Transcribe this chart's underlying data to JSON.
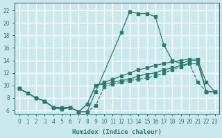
{
  "background_color": "#cce8ef",
  "grid_color": "#ffffff",
  "line_color": "#2d7a6e",
  "xlabel": "Humidex (Indice chaleur)",
  "xlim": [
    -0.5,
    23.5
  ],
  "ylim": [
    5.5,
    23.2
  ],
  "xticks": [
    0,
    1,
    2,
    3,
    4,
    5,
    6,
    7,
    8,
    9,
    10,
    11,
    12,
    13,
    14,
    15,
    16,
    17,
    18,
    19,
    20,
    21,
    22,
    23
  ],
  "yticks": [
    6,
    8,
    10,
    12,
    14,
    16,
    18,
    20,
    22
  ],
  "curve1_x": [
    0,
    1,
    2,
    3,
    4,
    5,
    6,
    7,
    8,
    9,
    12,
    13,
    14,
    15,
    16,
    17,
    18,
    19,
    20,
    21,
    22,
    23
  ],
  "curve1_y": [
    9.5,
    8.8,
    8.0,
    7.5,
    6.5,
    6.5,
    6.5,
    5.8,
    5.8,
    9.0,
    18.5,
    21.8,
    21.5,
    21.5,
    21.0,
    16.5,
    14.0,
    13.5,
    14.0,
    14.0,
    10.5,
    9.0
  ],
  "curve2_x": [
    0,
    2,
    3,
    4,
    5,
    6,
    7,
    8,
    9,
    10,
    11,
    12,
    13,
    14,
    15,
    16,
    17,
    18,
    19,
    20,
    21,
    22,
    23
  ],
  "curve2_y": [
    9.5,
    8.0,
    7.5,
    6.5,
    6.2,
    6.5,
    5.8,
    7.0,
    10.0,
    10.5,
    11.0,
    11.5,
    12.0,
    12.5,
    12.8,
    13.2,
    13.5,
    13.8,
    14.0,
    14.2,
    14.2,
    9.0,
    9.0
  ],
  "curve3_x": [
    0,
    2,
    3,
    4,
    5,
    6,
    7,
    8,
    9,
    10,
    11,
    12,
    13,
    14,
    15,
    16,
    17,
    18,
    19,
    20,
    21,
    22,
    23
  ],
  "curve3_y": [
    9.5,
    8.0,
    7.5,
    6.5,
    6.2,
    6.5,
    5.8,
    7.0,
    10.0,
    10.2,
    10.5,
    10.8,
    11.0,
    11.5,
    11.8,
    12.0,
    12.5,
    12.8,
    13.2,
    13.5,
    13.5,
    9.0,
    9.0
  ],
  "curve4_x": [
    0,
    1,
    2,
    3,
    4,
    5,
    6,
    7,
    8,
    9,
    10,
    11,
    12,
    13,
    14,
    15,
    16,
    17,
    18,
    19,
    20,
    21,
    22,
    23
  ],
  "curve4_y": [
    9.5,
    8.8,
    8.0,
    7.5,
    6.5,
    6.2,
    6.5,
    5.8,
    5.8,
    6.8,
    9.8,
    10.2,
    10.5,
    10.8,
    11.0,
    11.2,
    11.5,
    12.0,
    12.5,
    13.0,
    13.5,
    10.5,
    9.0,
    9.0
  ]
}
